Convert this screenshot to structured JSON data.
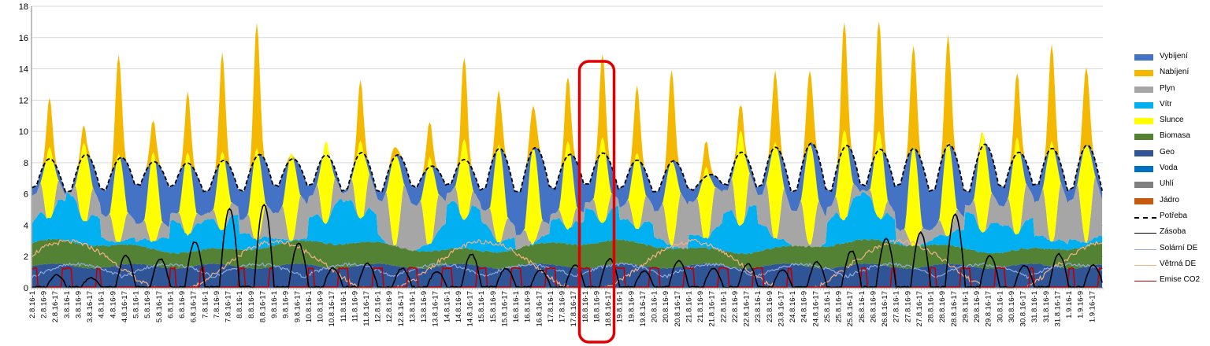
{
  "chart_data": {
    "type": "area",
    "title": "",
    "xlabel": "",
    "ylabel": "",
    "ylim": [
      0,
      18
    ],
    "yticks": [
      0,
      2,
      4,
      6,
      8,
      10,
      12,
      14,
      16,
      18
    ],
    "grid": "horizontal",
    "legend_position": "right",
    "x_tick_labels": [
      "2.8.16-1",
      "2.8.16-9",
      "2.8.16-17",
      "3.8.16-1",
      "3.8.16-9",
      "3.8.16-17",
      "4.8.16-1",
      "4.8.16-9",
      "4.8.16-17",
      "5.8.16-1",
      "5.8.16-9",
      "5.8.16-17",
      "6.8.16-1",
      "6.8.16-9",
      "6.8.16-17",
      "7.8.16-1",
      "7.8.16-9",
      "7.8.16-17",
      "8.8.16-1",
      "8.8.16-9",
      "8.8.16-17",
      "9.8.16-1",
      "9.8.16-9",
      "9.8.16-17",
      "10.8.16-1",
      "10.8.16-9",
      "10.8.16-17",
      "11.8.16-1",
      "11.8.16-9",
      "11.8.16-17",
      "12.8.16-1",
      "12.8.16-9",
      "12.8.16-17",
      "13.8.16-1",
      "13.8.16-9",
      "13.8.16-17",
      "14.8.16-1",
      "14.8.16-9",
      "14.8.16-17",
      "15.8.16-1",
      "15.8.16-9",
      "15.8.16-17",
      "16.8.16-1",
      "16.8.16-9",
      "16.8.16-17",
      "17.8.16-1",
      "17.8.16-9",
      "17.8.16-17",
      "18.8.16-1",
      "18.8.16-9",
      "18.8.16-17",
      "19.8.16-1",
      "19.8.16-9",
      "19.8.16-17",
      "20.8.16-1",
      "20.8.16-9",
      "20.8.16-17",
      "21.8.16-1",
      "21.8.16-9",
      "21.8.16-17",
      "22.8.16-1",
      "22.8.16-9",
      "22.8.16-17",
      "23.8.16-1",
      "23.8.16-9",
      "23.8.16-17",
      "24.8.16-1",
      "24.8.16-9",
      "24.8.16-17",
      "25.8.16-1",
      "25.8.16-9",
      "25.8.16-17",
      "26.8.16-1",
      "26.8.16-9",
      "26.8.16-17",
      "27.8.16-1",
      "27.8.16-9",
      "27.8.16-17",
      "28.8.16-1",
      "28.8.16-9",
      "28.8.16-17",
      "29.8.16-1",
      "29.8.16-9",
      "29.8.16-17",
      "30.8.16-1",
      "30.8.16-9",
      "30.8.16-17",
      "31.8.16-1",
      "31.8.16-9",
      "31.8.16-17",
      "1.9.16-1",
      "1.9.16-9",
      "1.9.16-17"
    ],
    "legend": [
      {
        "name": "Vybíjení",
        "color": "#4472c4",
        "kind": "area"
      },
      {
        "name": "Nabíjení",
        "color": "#f5b800",
        "kind": "area"
      },
      {
        "name": "Plyn",
        "color": "#a6a6a6",
        "kind": "area"
      },
      {
        "name": "Vítr",
        "color": "#00b0f0",
        "kind": "area"
      },
      {
        "name": "Slunce",
        "color": "#ffff00",
        "kind": "area"
      },
      {
        "name": "Biomasa",
        "color": "#548235",
        "kind": "area"
      },
      {
        "name": "Geo",
        "color": "#2f5597",
        "kind": "area"
      },
      {
        "name": "Voda",
        "color": "#0070c0",
        "kind": "area"
      },
      {
        "name": "Uhlí",
        "color": "#808080",
        "kind": "area"
      },
      {
        "name": "Jádro",
        "color": "#c55a11",
        "kind": "area"
      },
      {
        "name": "Potřeba",
        "color": "#000000",
        "kind": "dashed"
      },
      {
        "name": "Zásoba",
        "color": "#000000",
        "kind": "line"
      },
      {
        "name": "Solární DE",
        "color": "#8faadc",
        "kind": "line"
      },
      {
        "name": "Větrná DE",
        "color": "#f4b183",
        "kind": "line"
      },
      {
        "name": "Emise CO2",
        "color": "#c00000",
        "kind": "line"
      }
    ],
    "daily_peak_total": [
      11.4,
      9.6,
      14.8,
      10.4,
      11.9,
      14.5,
      16.6,
      8.4,
      8.2,
      12.5,
      9.0,
      10.3,
      13.6,
      12.4,
      11.6,
      12.9,
      14.2,
      12.5,
      13.9,
      9.0,
      10.6,
      13.6,
      13.9,
      16.1,
      16.2,
      15.5,
      16.0,
      9.1,
      13.1,
      15.3,
      14.1
    ],
    "daily_peak_demand": [
      8.1,
      8.3,
      8.4,
      8.3,
      7.9,
      7.9,
      8.5,
      8.5,
      8.5,
      8.4,
      8.4,
      8.0,
      8.3,
      8.7,
      8.8,
      8.7,
      8.8,
      8.0,
      7.9,
      7.3,
      8.9,
      8.9,
      9.0,
      9.1,
      9.1,
      8.9,
      8.9,
      9.1,
      8.9,
      9.0,
      8.9
    ],
    "daily_peak_zasoba": [
      0.8,
      0.6,
      2.0,
      1.8,
      2.9,
      5.0,
      5.3,
      2.8,
      1.2,
      1.5,
      1.2,
      1.0,
      2.1,
      1.2,
      1.1,
      1.4,
      1.8,
      1.0,
      1.7,
      1.2,
      1.5,
      1.1,
      1.6,
      2.3,
      3.1,
      3.5,
      4.7,
      2.0,
      1.4,
      2.1,
      1.4
    ],
    "highlight_box": {
      "label": "18.8.16-9"
    }
  }
}
